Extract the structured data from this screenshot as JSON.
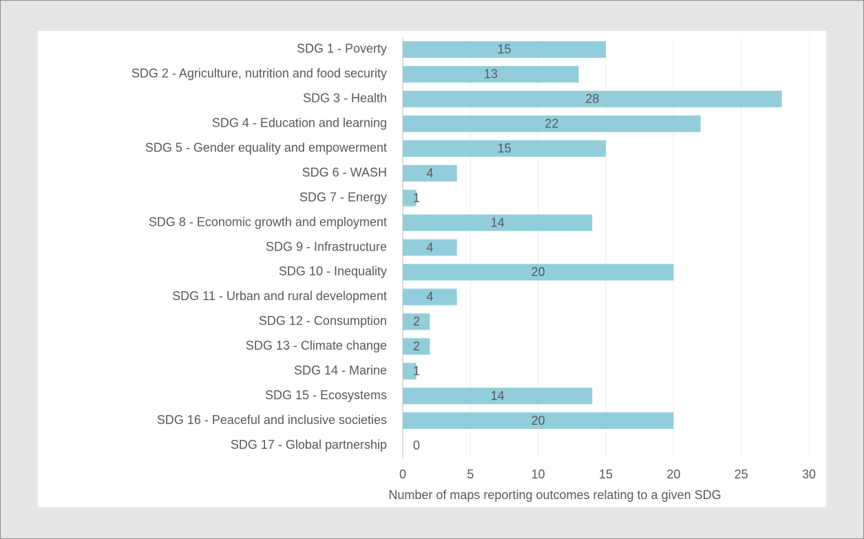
{
  "chart_data": {
    "type": "bar",
    "orientation": "horizontal",
    "x_label": "Number of maps reporting outcomes relating to a given SDG",
    "categories": [
      "SDG 1 - Poverty",
      "SDG 2 - Agriculture, nutrition and food security",
      "SDG 3 - Health",
      "SDG 4 - Education and learning",
      "SDG 5 - Gender equality and empowerment",
      "SDG 6 - WASH",
      "SDG 7 - Energy",
      "SDG 8 - Economic growth and employment",
      "SDG 9 - Infrastructure",
      "SDG 10 - Inequality",
      "SDG 11 - Urban and rural development",
      "SDG 12 - Consumption",
      "SDG 13 - Climate change",
      "SDG 14 - Marine",
      "SDG 15 - Ecosystems",
      "SDG 16 - Peaceful and inclusive societies",
      "SDG 17 - Global partnership"
    ],
    "values": [
      15,
      13,
      28,
      22,
      15,
      4,
      1,
      14,
      4,
      20,
      4,
      2,
      2,
      1,
      14,
      20,
      0
    ],
    "color": "#92cddc",
    "xlim": [
      0,
      30
    ],
    "xticks": [
      0,
      5,
      10,
      15,
      20,
      25,
      30
    ],
    "grid": true
  }
}
